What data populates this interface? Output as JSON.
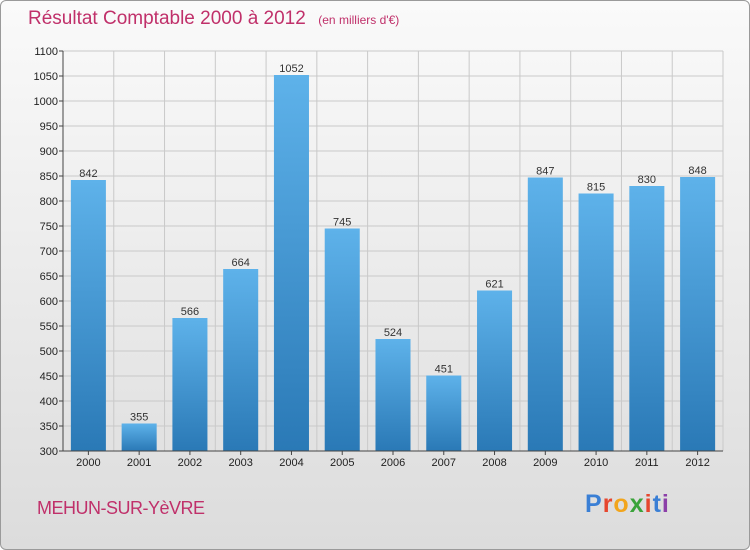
{
  "header": {
    "title": "Résultat Comptable 2000 à 2012",
    "unit": "(en milliers d'€)"
  },
  "footer": {
    "city": "MEHUN-SUR-YèVRE",
    "brand": [
      "P",
      "r",
      "o",
      "x",
      "i",
      "t",
      "i"
    ],
    "brand_colors": [
      "#3a7fd5",
      "#e6462e",
      "#f2a51c",
      "#3aa33a",
      "#e6462e",
      "#3a7fd5",
      "#8c3fa8"
    ]
  },
  "colors": {
    "bar_top": "#5eb2ea",
    "bar_bottom": "#2a79b6",
    "grid": "#c9c9c9",
    "title": "#c0306a"
  },
  "chart_data": {
    "type": "bar",
    "title": "Résultat Comptable 2000 à 2012",
    "subtitle": "(en milliers d'€)",
    "categories": [
      "2000",
      "2001",
      "2002",
      "2003",
      "2004",
      "2005",
      "2006",
      "2007",
      "2008",
      "2009",
      "2010",
      "2011",
      "2012"
    ],
    "values": [
      842,
      355,
      566,
      664,
      1052,
      745,
      524,
      451,
      621,
      847,
      815,
      830,
      848
    ],
    "value_labels": [
      "842",
      "355",
      "566",
      "664",
      "1052",
      "745",
      "524",
      "451",
      "621",
      "847",
      "815",
      "830",
      "848"
    ],
    "ylim": [
      300,
      1100
    ],
    "yticks": [
      300,
      350,
      400,
      450,
      500,
      550,
      600,
      650,
      700,
      750,
      800,
      850,
      900,
      950,
      1000,
      1050,
      1100
    ],
    "grid": true
  }
}
